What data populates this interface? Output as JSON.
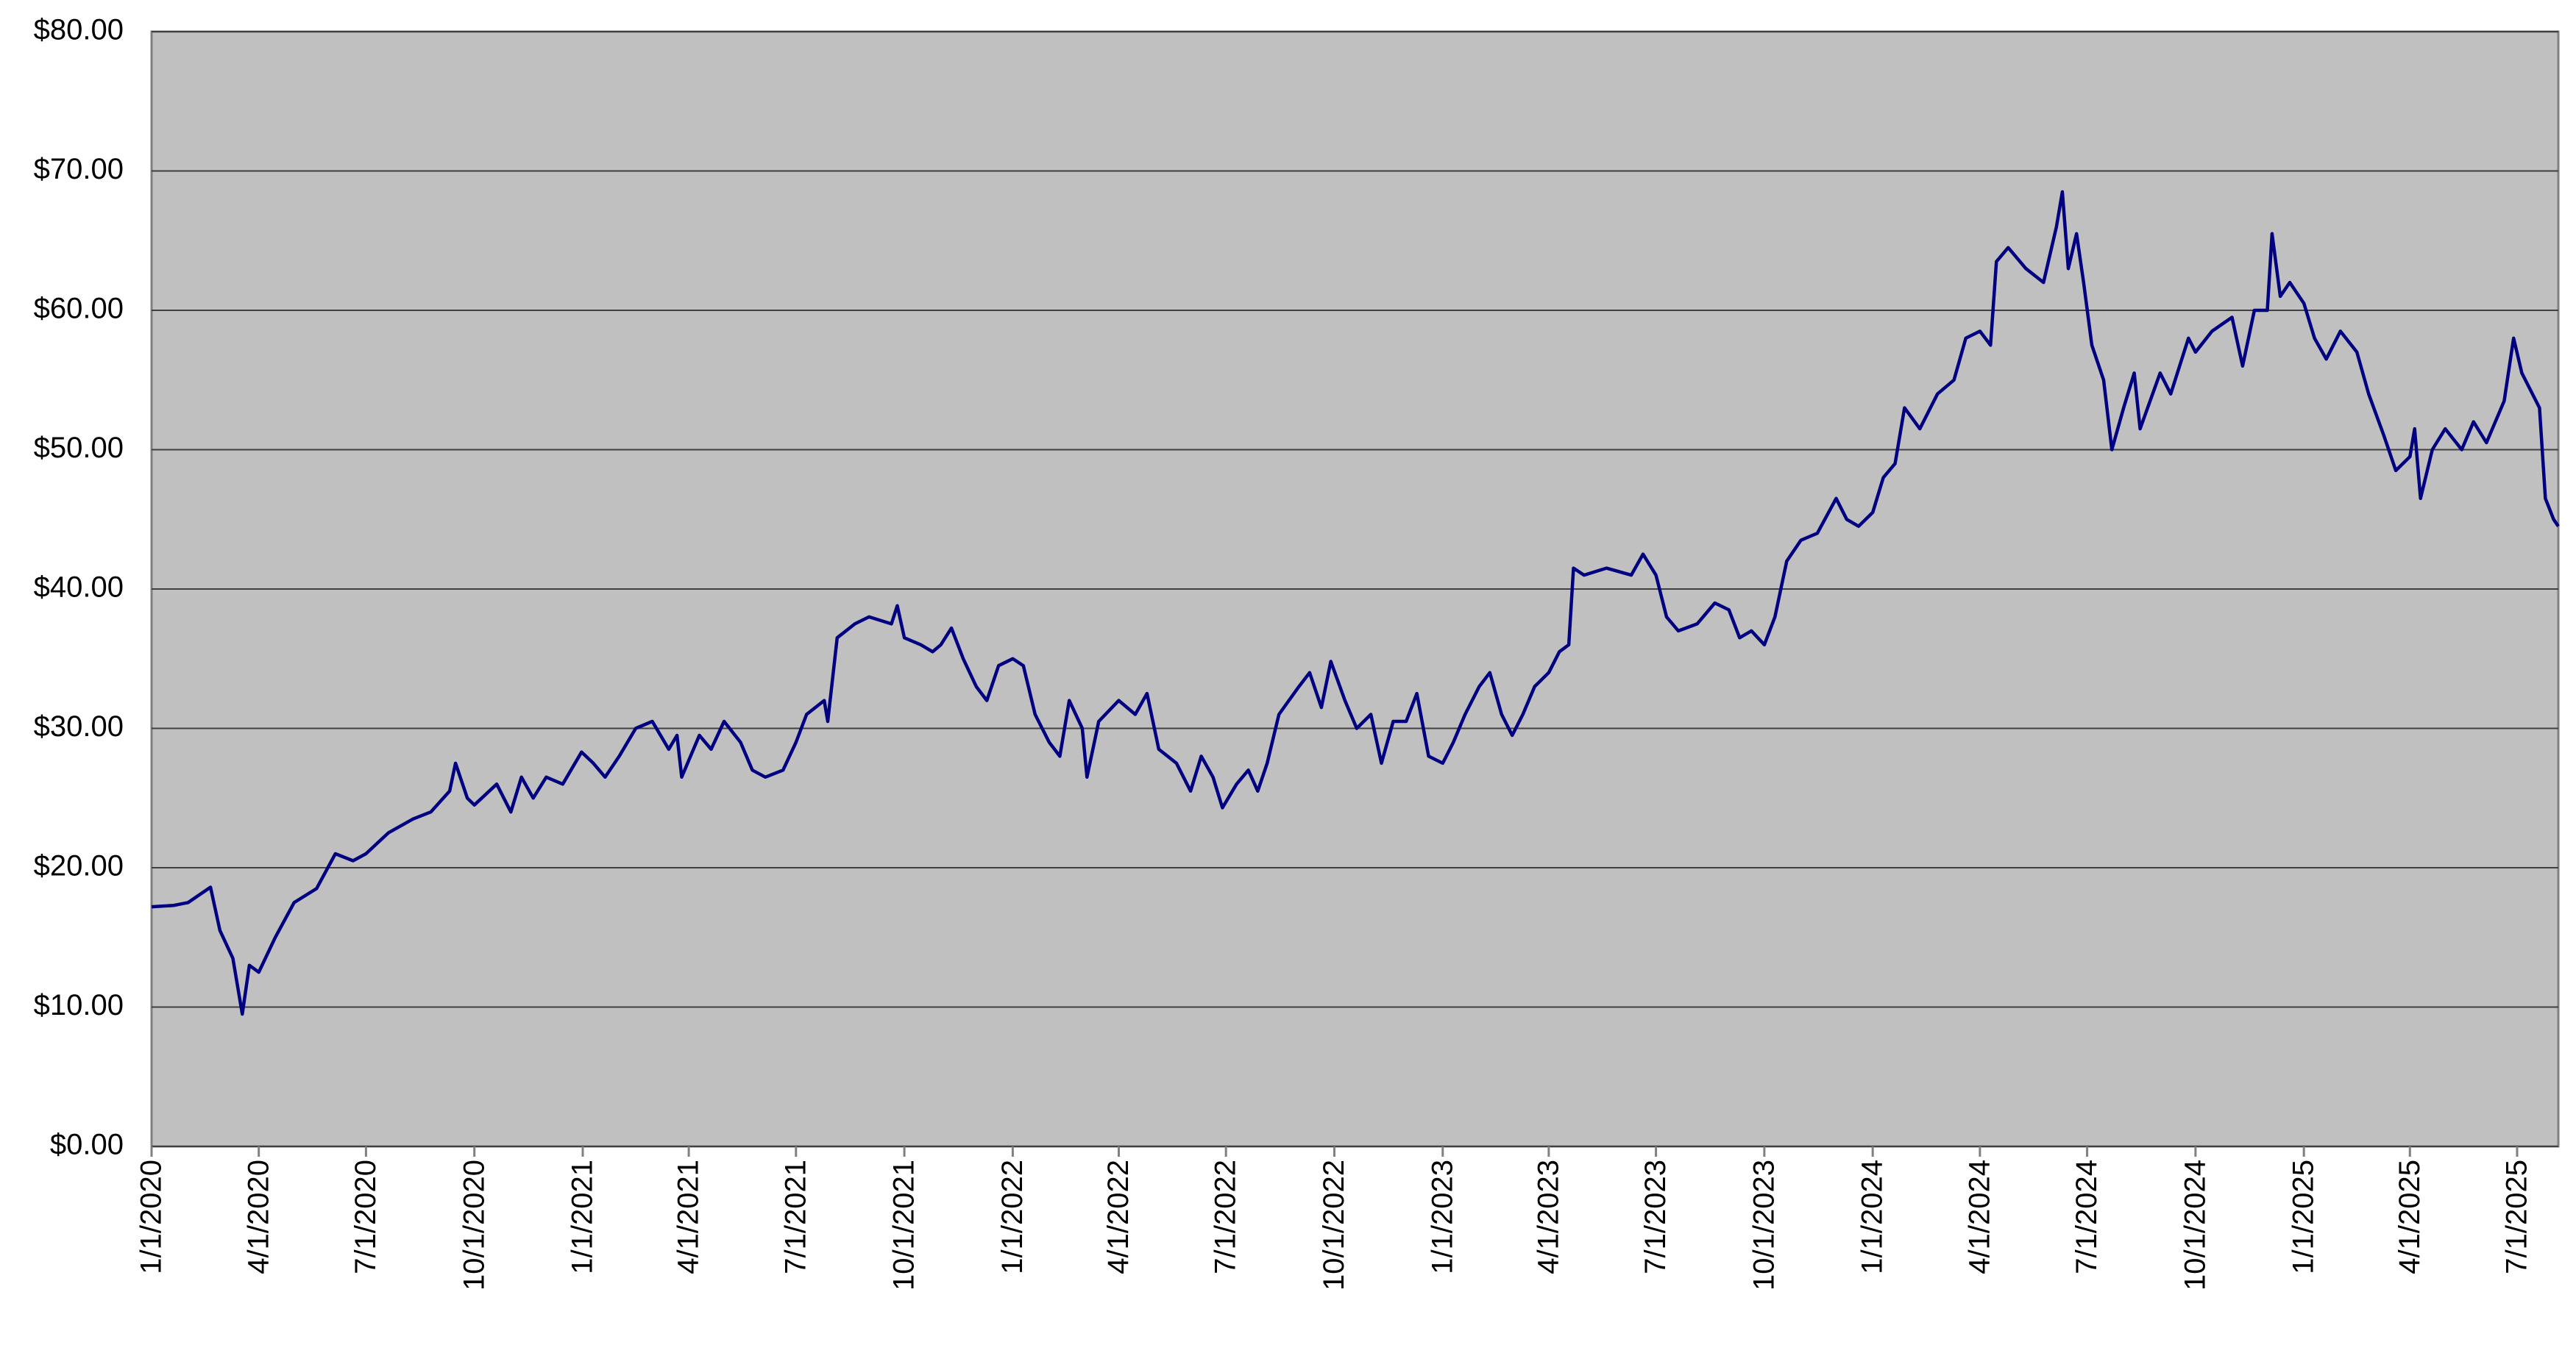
{
  "chart_data": {
    "type": "line",
    "x": [
      "1/1/2020",
      "1/20/2020",
      "2/1/2020",
      "2/20/2020",
      "2/28/2020",
      "3/10/2020",
      "3/18/2020",
      "3/24/2020",
      "4/1/2020",
      "4/15/2020",
      "5/1/2020",
      "5/20/2020",
      "6/5/2020",
      "6/20/2020",
      "7/1/2020",
      "7/20/2020",
      "8/10/2020",
      "8/25/2020",
      "9/10/2020",
      "9/15/2020",
      "9/25/2020",
      "10/1/2020",
      "10/20/2020",
      "11/1/2020",
      "11/10/2020",
      "11/20/2020",
      "12/1/2020",
      "12/15/2020",
      "12/31/2020",
      "1/10/2021",
      "1/20/2021",
      "2/1/2021",
      "2/15/2021",
      "3/1/2021",
      "3/15/2021",
      "3/22/2021",
      "3/26/2021",
      "4/10/2021",
      "4/20/2021",
      "5/1/2021",
      "5/15/2021",
      "5/25/2021",
      "6/5/2021",
      "6/20/2021",
      "7/1/2021",
      "7/10/2021",
      "7/25/2021",
      "7/28/2021",
      "8/5/2021",
      "8/20/2021",
      "9/1/2021",
      "9/20/2021",
      "9/25/2021",
      "10/1/2021",
      "10/15/2021",
      "10/25/2021",
      "11/1/2021",
      "11/10/2021",
      "11/20/2021",
      "12/1/2021",
      "12/10/2021",
      "12/20/2021",
      "1/1/2022",
      "1/10/2022",
      "1/20/2022",
      "2/1/2022",
      "2/10/2022",
      "2/18/2022",
      "3/1/2022",
      "3/5/2022",
      "3/15/2022",
      "4/1/2022",
      "4/15/2022",
      "4/25/2022",
      "5/5/2022",
      "5/20/2022",
      "6/1/2022",
      "6/10/2022",
      "6/20/2022",
      "6/28/2022",
      "7/10/2022",
      "7/20/2022",
      "7/28/2022",
      "8/5/2022",
      "8/15/2022",
      "9/1/2022",
      "9/10/2022",
      "9/20/2022",
      "9/28/2022",
      "10/10/2022",
      "10/20/2022",
      "11/1/2022",
      "11/10/2022",
      "11/20/2022",
      "12/1/2022",
      "12/10/2022",
      "12/20/2022",
      "1/1/2023",
      "1/10/2023",
      "1/20/2023",
      "2/1/2023",
      "2/10/2023",
      "2/20/2023",
      "3/1/2023",
      "3/10/2023",
      "3/20/2023",
      "4/1/2023",
      "4/10/2023",
      "4/18/2023",
      "4/22/2023",
      "5/1/2023",
      "5/20/2023",
      "6/10/2023",
      "6/20/2023",
      "7/1/2023",
      "7/10/2023",
      "7/20/2023",
      "8/5/2023",
      "8/20/2023",
      "9/1/2023",
      "9/10/2023",
      "9/20/2023",
      "10/1/2023",
      "10/10/2023",
      "10/20/2023",
      "11/1/2023",
      "11/15/2023",
      "12/1/2023",
      "12/10/2023",
      "12/20/2023",
      "1/1/2024",
      "1/10/2024",
      "1/20/2024",
      "1/28/2024",
      "2/10/2024",
      "2/25/2024",
      "3/10/2024",
      "3/20/2024",
      "4/1/2024",
      "4/10/2024",
      "4/15/2024",
      "4/25/2024",
      "5/10/2024",
      "5/25/2024",
      "6/5/2024",
      "6/10/2024",
      "6/15/2024",
      "6/22/2024",
      "6/28/2024",
      "7/5/2024",
      "7/15/2024",
      "7/22/2024",
      "8/1/2024",
      "8/10/2024",
      "8/15/2024",
      "9/1/2024",
      "9/10/2024",
      "9/25/2024",
      "10/1/2024",
      "10/15/2024",
      "11/1/2024",
      "11/10/2024",
      "11/20/2024",
      "12/1/2024",
      "12/5/2024",
      "12/12/2024",
      "12/20/2024",
      "1/1/2025",
      "1/10/2025",
      "1/20/2025",
      "2/1/2025",
      "2/15/2025",
      "2/25/2025",
      "3/10/2025",
      "3/20/2025",
      "4/1/2025",
      "4/5/2025",
      "4/10/2025",
      "4/20/2025",
      "5/1/2025",
      "5/15/2025",
      "5/25/2025",
      "6/5/2025",
      "6/20/2025",
      "6/28/2025",
      "7/5/2025",
      "7/20/2025",
      "7/25/2025",
      "8/1/2025",
      "8/5/2025"
    ],
    "series": [
      {
        "color": "#000080",
        "values": [
          17.2,
          17.3,
          17.5,
          18.6,
          15.5,
          13.5,
          9.5,
          13,
          12.5,
          15,
          17.5,
          18.5,
          21,
          20.5,
          21,
          22.5,
          23.5,
          24,
          25.5,
          27.5,
          25,
          24.5,
          26,
          24,
          26.5,
          25,
          26.5,
          26,
          28.3,
          27.5,
          26.5,
          28,
          30,
          30.5,
          28.5,
          29.5,
          26.5,
          29.5,
          28.5,
          30.5,
          29,
          27,
          26.5,
          27,
          29,
          31,
          32,
          30.5,
          36.5,
          37.5,
          38,
          37.5,
          38.8,
          36.5,
          36,
          35.5,
          36,
          37.2,
          35,
          33,
          32,
          34.5,
          35,
          34.5,
          31,
          29,
          28,
          32,
          30,
          26.5,
          30.5,
          32,
          31,
          32.5,
          28.5,
          27.5,
          25.5,
          28,
          26.5,
          24.3,
          26,
          27,
          25.5,
          27.5,
          31,
          33,
          34,
          31.5,
          34.8,
          32,
          30,
          31,
          27.5,
          30.5,
          30.5,
          32.5,
          28,
          27.5,
          29,
          31,
          33,
          34,
          31,
          29.5,
          31,
          33,
          34,
          35.5,
          36,
          41.5,
          41,
          41.5,
          41,
          42.5,
          41,
          38,
          37,
          37.5,
          39,
          38.5,
          36.5,
          37,
          36,
          38,
          42,
          43.5,
          44,
          46.5,
          45,
          44.5,
          45.5,
          48,
          49,
          53,
          51.5,
          54,
          55,
          58,
          58.5,
          57.5,
          63.5,
          64.5,
          63,
          62,
          66,
          68.5,
          63,
          65.5,
          62,
          57.5,
          55,
          50,
          53,
          55.5,
          51.5,
          55.5,
          54,
          58,
          57,
          58.5,
          59.5,
          56,
          60,
          60,
          65.5,
          61,
          62,
          60.5,
          58,
          56.5,
          58.5,
          57,
          54,
          51,
          48.5,
          49.5,
          51.5,
          46.5,
          50,
          51.5,
          50,
          52,
          50.5,
          53.5,
          58,
          55.5,
          53,
          46.5,
          45,
          44.5
        ]
      }
    ],
    "xlim": [
      "1/1/2020",
      "8/5/2025"
    ],
    "xticks": [
      "1/1/2020",
      "4/1/2020",
      "7/1/2020",
      "10/1/2020",
      "1/1/2021",
      "4/1/2021",
      "7/1/2021",
      "10/1/2021",
      "1/1/2022",
      "4/1/2022",
      "7/1/2022",
      "10/1/2022",
      "1/1/2023",
      "4/1/2023",
      "7/1/2023",
      "10/1/2023",
      "1/1/2024",
      "4/1/2024",
      "7/1/2024",
      "10/1/2024",
      "1/1/2025",
      "4/1/2025",
      "7/1/2025"
    ],
    "ylim": [
      0,
      80
    ],
    "yticks": [
      {
        "value": 0,
        "label": "$0.00"
      },
      {
        "value": 10,
        "label": "$10.00"
      },
      {
        "value": 20,
        "label": "$20.00"
      },
      {
        "value": 30,
        "label": "$30.00"
      },
      {
        "value": 40,
        "label": "$40.00"
      },
      {
        "value": 50,
        "label": "$50.00"
      },
      {
        "value": 60,
        "label": "$60.00"
      },
      {
        "value": 70,
        "label": "$70.00"
      },
      {
        "value": 80,
        "label": "$80.00"
      }
    ],
    "grid": true
  }
}
